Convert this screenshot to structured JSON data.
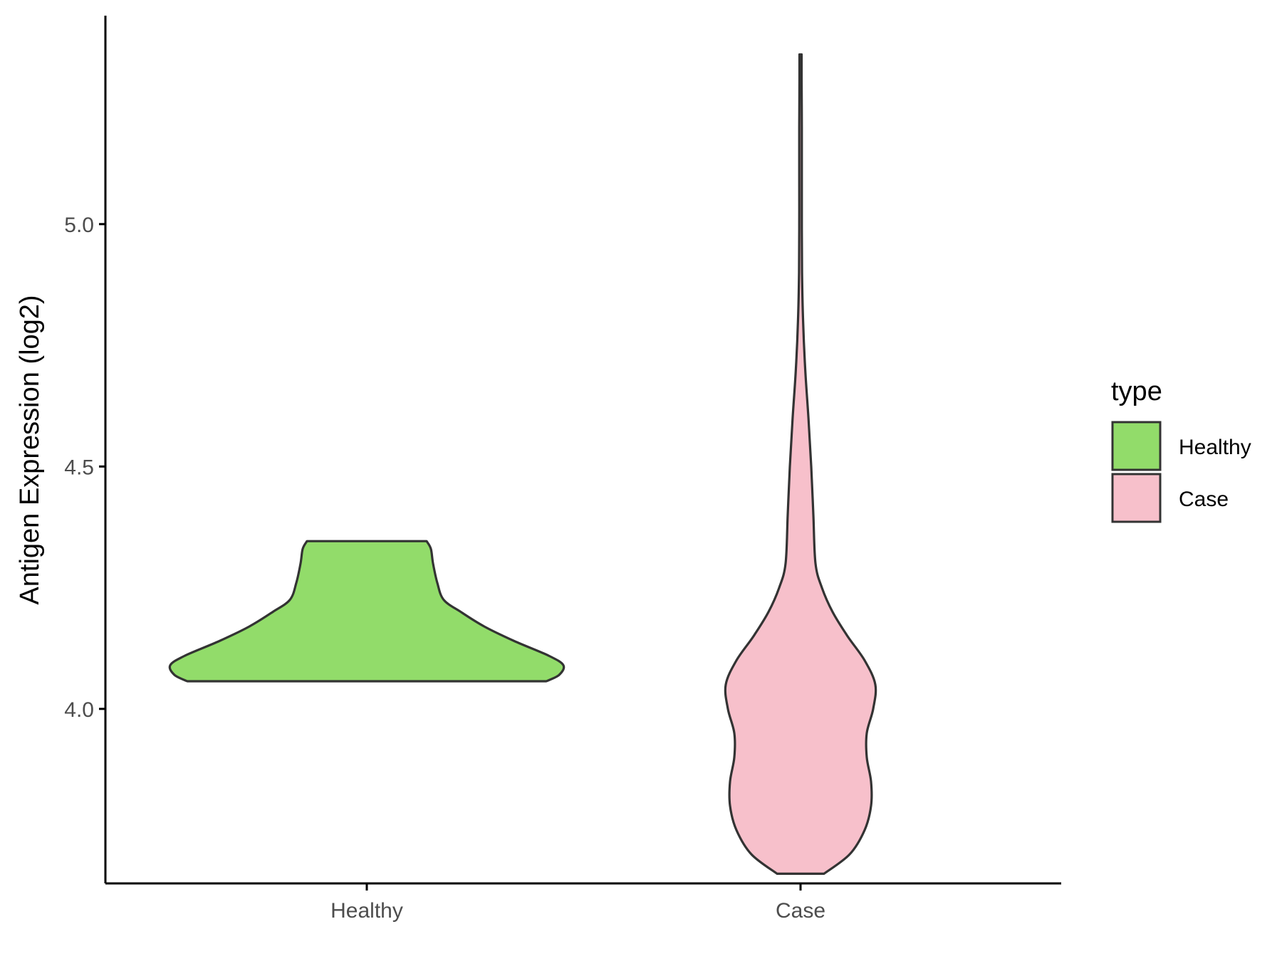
{
  "chart_data": {
    "type": "violin",
    "ylabel": "Antigen Expression (log2)",
    "xlabel": "",
    "categories": [
      "Healthy",
      "Case"
    ],
    "ylim": [
      3.64,
      5.43
    ],
    "yticks": [
      4.0,
      4.5,
      5.0
    ],
    "ytick_labels": [
      "4.0",
      "4.5",
      "5.0"
    ],
    "grid": false,
    "legend": {
      "title": "type",
      "position": "right",
      "entries": [
        "Healthy",
        "Case"
      ]
    },
    "colors": {
      "Healthy": "#92dc6a",
      "Case": "#f7c0cb",
      "outline": "#333333"
    },
    "series": [
      {
        "name": "Healthy",
        "min": 4.057,
        "max": 4.346,
        "density_profile": [
          [
            4.057,
            0.84
          ],
          [
            4.07,
            0.9
          ],
          [
            4.09,
            0.92
          ],
          [
            4.11,
            0.85
          ],
          [
            4.14,
            0.69
          ],
          [
            4.17,
            0.55
          ],
          [
            4.2,
            0.44
          ],
          [
            4.225,
            0.36
          ],
          [
            4.26,
            0.33
          ],
          [
            4.3,
            0.31
          ],
          [
            4.33,
            0.3
          ],
          [
            4.346,
            0.28
          ]
        ]
      },
      {
        "name": "Case",
        "min": 3.66,
        "max": 5.35,
        "density_profile": [
          [
            3.66,
            0.11
          ],
          [
            3.7,
            0.23
          ],
          [
            3.75,
            0.3
          ],
          [
            3.8,
            0.33
          ],
          [
            3.85,
            0.33
          ],
          [
            3.9,
            0.31
          ],
          [
            3.95,
            0.31
          ],
          [
            4.0,
            0.34
          ],
          [
            4.05,
            0.35
          ],
          [
            4.1,
            0.3
          ],
          [
            4.15,
            0.22
          ],
          [
            4.2,
            0.15
          ],
          [
            4.25,
            0.1
          ],
          [
            4.3,
            0.07
          ],
          [
            4.4,
            0.06
          ],
          [
            4.5,
            0.05
          ],
          [
            4.6,
            0.037
          ],
          [
            4.7,
            0.022
          ],
          [
            4.8,
            0.012
          ],
          [
            4.9,
            0.007
          ],
          [
            5.0,
            0.006
          ],
          [
            5.1,
            0.006
          ],
          [
            5.2,
            0.006
          ],
          [
            5.3,
            0.005
          ],
          [
            5.35,
            0.005
          ]
        ]
      }
    ]
  }
}
